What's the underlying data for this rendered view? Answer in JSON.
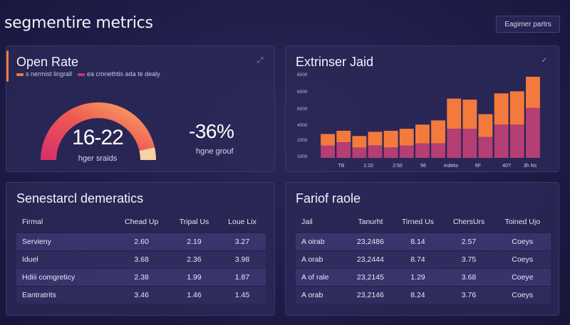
{
  "header": {
    "title": "segmentire metrics",
    "button_label": "Eagimer partrs"
  },
  "open_rate": {
    "title": "Open Rate",
    "legend": [
      {
        "label": "s nermist lingrall",
        "color": "#f07a3c"
      },
      {
        "label": "ea cmnethtis ada te dealy",
        "color": "#b8386e"
      }
    ],
    "gauge_value": "16-22",
    "gauge_fraction": 0.65,
    "gauge_label": "hger sraids",
    "change_value": "-36%",
    "change_label": "hgne grouf",
    "colors": {
      "gauge_start": "#d8306a",
      "gauge_end": "#f6a160",
      "gauge_tip": "#f4d3a4",
      "track": "#3b3873"
    }
  },
  "extrinser": {
    "title": "Extrinser Jaid",
    "chart_data": {
      "type": "bar",
      "stacked": true,
      "y_tick_labels": [
        "8000",
        "6000",
        "6000",
        "4000",
        "2000",
        "1000"
      ],
      "x_tick_labels": [
        "TB",
        "1:10",
        "2:50",
        "56",
        "mdeks",
        "6F",
        "40?",
        "3h Ns"
      ],
      "categories": [
        "1",
        "2",
        "3",
        "4",
        "5",
        "6",
        "7",
        "8",
        "9",
        "10",
        "11",
        "12",
        "13",
        "14"
      ],
      "series": [
        {
          "color": "#b53e72",
          "values": [
            1.2,
            1.5,
            1.0,
            1.2,
            1.0,
            1.2,
            1.4,
            1.4,
            2.8,
            2.8,
            2.0,
            3.2,
            3.2,
            4.8
          ]
        },
        {
          "color": "#f37a3c",
          "values": [
            1.1,
            1.1,
            1.1,
            1.3,
            1.6,
            1.6,
            1.8,
            2.2,
            2.9,
            2.8,
            2.2,
            3.0,
            3.2,
            3.0
          ]
        }
      ],
      "ylim": [
        0,
        8
      ],
      "grid": false
    }
  },
  "segment_demo": {
    "title": "Senestarcl demeratics",
    "columns": [
      "Firmal",
      "Chead Up",
      "Tripal Us",
      "Loue Lix"
    ],
    "rows": [
      [
        "Servieny",
        "2.60",
        "2.19",
        "3.27"
      ],
      [
        "Iduel",
        "3.68",
        "2.36",
        "3.98"
      ],
      [
        "Hdiii comgreticy",
        "2.38",
        "1.99",
        "1.87"
      ],
      [
        "Eantratrits",
        "3.46",
        "1.46",
        "1.45"
      ]
    ]
  },
  "fariof": {
    "title": "Fariof raole",
    "columns": [
      "Jail",
      "Tanurht",
      "Tirned Us",
      "ChersUrs",
      "Toined Ujo"
    ],
    "rows": [
      [
        "A oirab",
        "23,2486",
        "8.14",
        "2.57",
        "Coeys"
      ],
      [
        "A orab",
        "23,2444",
        "8.74",
        "3.75",
        "Coeys"
      ],
      [
        "A of rale",
        "23,2145",
        "1.29",
        "3.68",
        "Coeye"
      ],
      [
        "A orab",
        "23,2146",
        "8.24",
        "3.76",
        "Coeys"
      ]
    ]
  }
}
